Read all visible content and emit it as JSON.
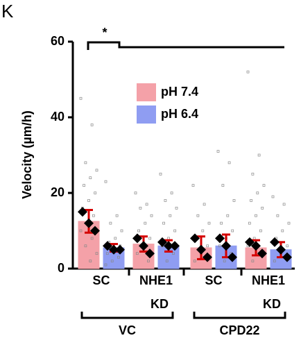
{
  "chart_data": {
    "type": "bar",
    "panel_label": "K",
    "ylabel": "Velocity (µm/h)",
    "ylim": [
      0,
      60
    ],
    "yticks": [
      0,
      20,
      40,
      60
    ],
    "categories": [
      "SC",
      "NHE1",
      "SC",
      "NHE1"
    ],
    "sublabel": "KD",
    "groups": [
      "VC",
      "CPD22"
    ],
    "significance": "*",
    "series": [
      {
        "name": "pH 7.4",
        "color": "#f4a1a8",
        "values": [
          12.5,
          6.5,
          5.5,
          5.5
        ],
        "errors": [
          3,
          2,
          3,
          2
        ],
        "replicates": [
          [
            15,
            12,
            10
          ],
          [
            8,
            6,
            4
          ],
          [
            8,
            5,
            3
          ],
          [
            7,
            6,
            4
          ]
        ],
        "points": [
          [
            45,
            38,
            28,
            26,
            24,
            22,
            20,
            18,
            16,
            14,
            12,
            10,
            8,
            6,
            4,
            2
          ],
          [
            20,
            17,
            16,
            14,
            12,
            10,
            8,
            6,
            4,
            2
          ],
          [
            22,
            17,
            14,
            12,
            10,
            8,
            6,
            4,
            2
          ],
          [
            52,
            30,
            25,
            22,
            20,
            18,
            16,
            14,
            12,
            10,
            8,
            6,
            4,
            2
          ]
        ]
      },
      {
        "name": "pH 6.4",
        "color": "#8f9df2",
        "values": [
          5.5,
          6,
          6,
          5
        ],
        "errors": [
          1,
          1.5,
          3,
          2
        ],
        "replicates": [
          [
            6,
            5,
            5
          ],
          [
            7,
            6,
            6
          ],
          [
            8,
            6,
            3
          ],
          [
            7,
            5,
            3
          ]
        ],
        "points": [
          [
            23,
            14,
            12,
            10,
            8,
            7,
            6,
            5,
            4,
            3,
            2,
            1
          ],
          [
            25,
            20,
            18,
            16,
            14,
            12,
            10,
            8,
            6,
            4,
            2
          ],
          [
            31,
            28,
            22,
            18,
            14,
            12,
            10,
            8,
            6,
            4,
            2
          ],
          [
            19,
            17,
            14,
            12,
            10,
            8,
            6,
            4,
            2
          ]
        ]
      }
    ]
  }
}
